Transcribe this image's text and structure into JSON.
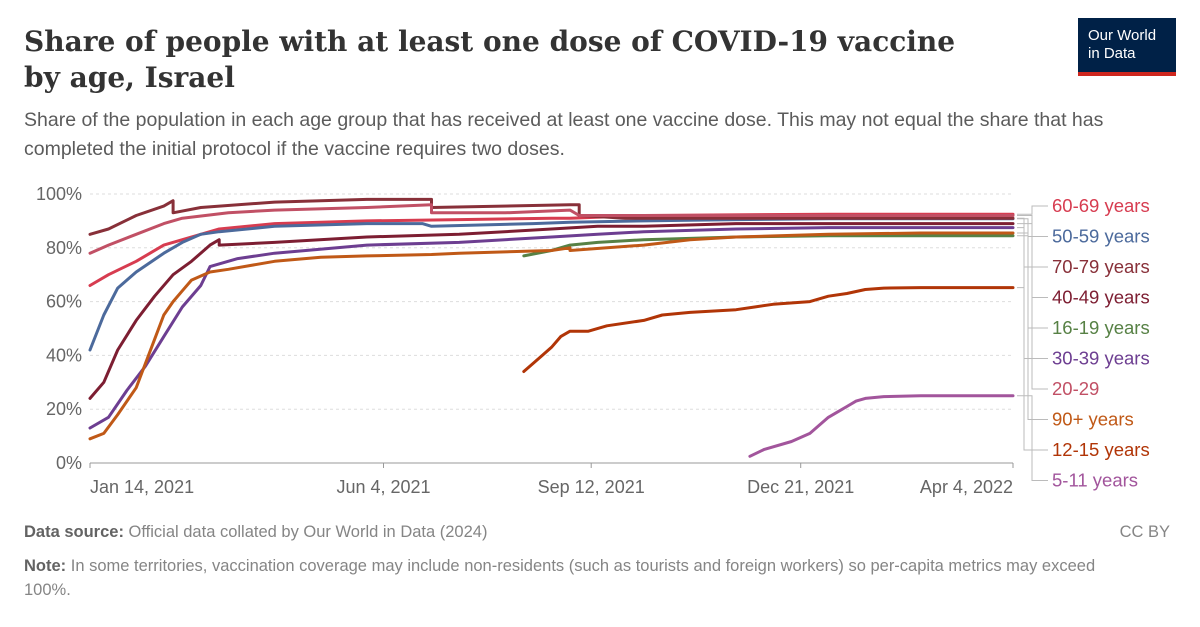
{
  "header": {
    "title": "Share of people with at least one dose of COVID-19 vaccine by age, Israel",
    "subtitle": "Share of the population in each age group that has received at least one vaccine dose. This may not equal the share that has completed the initial protocol if the vaccine requires two doses.",
    "logo_line1": "Our World",
    "logo_line2": "in Data"
  },
  "footer": {
    "source_label": "Data source:",
    "source_text": "Official data collated by Our World in Data (2024)",
    "license": "CC BY",
    "note_label": "Note:",
    "note_text": "In some territories, vaccination coverage may include non-residents (such as tourists and foreign workers) so per-capita metrics may exceed 100%."
  },
  "chart_data": {
    "type": "line",
    "title": "Share of people with at least one dose of COVID-19 vaccine by age, Israel",
    "xlabel": "",
    "ylabel": "",
    "x_domain": [
      0,
      1
    ],
    "ylim": [
      0,
      100
    ],
    "y_ticks": [
      {
        "value": 0,
        "label": "0%"
      },
      {
        "value": 20,
        "label": "20%"
      },
      {
        "value": 40,
        "label": "40%"
      },
      {
        "value": 60,
        "label": "60%"
      },
      {
        "value": 80,
        "label": "80%"
      },
      {
        "value": 100,
        "label": "100%"
      }
    ],
    "x_ticks": [
      {
        "value": 0.0,
        "label": "Jan 14, 2021"
      },
      {
        "value": 0.318,
        "label": "Jun 4, 2021"
      },
      {
        "value": 0.543,
        "label": "Sep 12, 2021"
      },
      {
        "value": 0.77,
        "label": "Dec 21, 2021"
      },
      {
        "value": 1.0,
        "label": "Apr 4, 2022"
      }
    ],
    "grid": true,
    "legend_placement": "right",
    "series": [
      {
        "name": "60-69 years",
        "color": "#d73c50",
        "points": [
          [
            0,
            66
          ],
          [
            0.02,
            70
          ],
          [
            0.05,
            75
          ],
          [
            0.08,
            81
          ],
          [
            0.12,
            85
          ],
          [
            0.14,
            87
          ],
          [
            0.2,
            89
          ],
          [
            0.3,
            90
          ],
          [
            0.4,
            90.5
          ],
          [
            0.5,
            91
          ],
          [
            0.52,
            91
          ],
          [
            0.6,
            92
          ],
          [
            0.8,
            92.5
          ],
          [
            1,
            92.5
          ]
        ]
      },
      {
        "name": "50-59 years",
        "color": "#4c6a9c",
        "points": [
          [
            0,
            42
          ],
          [
            0.015,
            55
          ],
          [
            0.03,
            65
          ],
          [
            0.05,
            71
          ],
          [
            0.08,
            78
          ],
          [
            0.1,
            82
          ],
          [
            0.12,
            85
          ],
          [
            0.14,
            86
          ],
          [
            0.2,
            88
          ],
          [
            0.3,
            89
          ],
          [
            0.36,
            89
          ],
          [
            0.37,
            88
          ],
          [
            0.48,
            89
          ],
          [
            0.52,
            89.5
          ],
          [
            0.6,
            90
          ],
          [
            0.7,
            90.5
          ],
          [
            0.8,
            90.8
          ],
          [
            1,
            90.8
          ]
        ]
      },
      {
        "name": "70-79 years",
        "color": "#883039",
        "points": [
          [
            0,
            85
          ],
          [
            0.02,
            87
          ],
          [
            0.05,
            92
          ],
          [
            0.08,
            95.5
          ],
          [
            0.09,
            97.5
          ],
          [
            0.09,
            93
          ],
          [
            0.12,
            95
          ],
          [
            0.2,
            97
          ],
          [
            0.3,
            98
          ],
          [
            0.37,
            98
          ],
          [
            0.37,
            95
          ],
          [
            0.52,
            96
          ],
          [
            0.53,
            96
          ],
          [
            0.53,
            92
          ],
          [
            0.58,
            91
          ],
          [
            0.6,
            91
          ],
          [
            0.7,
            91
          ],
          [
            0.8,
            91
          ],
          [
            1,
            91
          ]
        ]
      },
      {
        "name": "40-49 years",
        "color": "#7d1e32",
        "points": [
          [
            0,
            24
          ],
          [
            0.015,
            30
          ],
          [
            0.03,
            42
          ],
          [
            0.05,
            53
          ],
          [
            0.07,
            62
          ],
          [
            0.09,
            70
          ],
          [
            0.11,
            75
          ],
          [
            0.13,
            81
          ],
          [
            0.14,
            83
          ],
          [
            0.14,
            81
          ],
          [
            0.2,
            82
          ],
          [
            0.3,
            84
          ],
          [
            0.4,
            85
          ],
          [
            0.5,
            87
          ],
          [
            0.55,
            88
          ],
          [
            0.6,
            88
          ],
          [
            0.7,
            89
          ],
          [
            0.8,
            89
          ],
          [
            1,
            89
          ]
        ]
      },
      {
        "name": "16-19 years",
        "color": "#578145",
        "points": [
          [
            0.47,
            77
          ],
          [
            0.5,
            79
          ],
          [
            0.52,
            81
          ],
          [
            0.55,
            82
          ],
          [
            0.6,
            83
          ],
          [
            0.7,
            84
          ],
          [
            0.8,
            84.5
          ],
          [
            1,
            84.5
          ]
        ]
      },
      {
        "name": "30-39 years",
        "color": "#6d3e91",
        "points": [
          [
            0,
            13
          ],
          [
            0.02,
            17
          ],
          [
            0.04,
            27
          ],
          [
            0.06,
            36
          ],
          [
            0.08,
            47
          ],
          [
            0.1,
            58
          ],
          [
            0.12,
            66
          ],
          [
            0.13,
            73
          ],
          [
            0.16,
            76
          ],
          [
            0.2,
            78
          ],
          [
            0.3,
            81
          ],
          [
            0.4,
            82
          ],
          [
            0.5,
            84
          ],
          [
            0.55,
            85
          ],
          [
            0.6,
            86
          ],
          [
            0.7,
            87
          ],
          [
            0.8,
            87.5
          ],
          [
            1,
            87.5
          ]
        ]
      },
      {
        "name": "20-29",
        "color": "#c15065",
        "points": [
          [
            0,
            78
          ],
          [
            0.02,
            81
          ],
          [
            0.05,
            85
          ],
          [
            0.08,
            89
          ],
          [
            0.1,
            91
          ],
          [
            0.15,
            93
          ],
          [
            0.2,
            94
          ],
          [
            0.3,
            95
          ],
          [
            0.37,
            96
          ],
          [
            0.37,
            93
          ],
          [
            0.45,
            93
          ],
          [
            0.52,
            94
          ],
          [
            0.53,
            92
          ],
          [
            0.6,
            92
          ],
          [
            0.7,
            92
          ],
          [
            0.8,
            92
          ],
          [
            1,
            92
          ]
        ]
      },
      {
        "name": "90+ years",
        "color": "#c05917",
        "points": [
          [
            0,
            9
          ],
          [
            0.015,
            11
          ],
          [
            0.03,
            18
          ],
          [
            0.05,
            28
          ],
          [
            0.06,
            37
          ],
          [
            0.07,
            46
          ],
          [
            0.08,
            55
          ],
          [
            0.09,
            60
          ],
          [
            0.1,
            64
          ],
          [
            0.11,
            68
          ],
          [
            0.13,
            71
          ],
          [
            0.15,
            72
          ],
          [
            0.2,
            75
          ],
          [
            0.25,
            76.5
          ],
          [
            0.3,
            77
          ],
          [
            0.37,
            77.5
          ],
          [
            0.4,
            78
          ],
          [
            0.5,
            79
          ],
          [
            0.52,
            80
          ],
          [
            0.52,
            79
          ],
          [
            0.6,
            81
          ],
          [
            0.65,
            83
          ],
          [
            0.7,
            84
          ],
          [
            0.8,
            85
          ],
          [
            0.9,
            85.5
          ],
          [
            1,
            85.5
          ]
        ]
      },
      {
        "name": "12-15 years",
        "color": "#b13507",
        "points": [
          [
            0.47,
            34
          ],
          [
            0.48,
            37
          ],
          [
            0.49,
            40
          ],
          [
            0.5,
            43
          ],
          [
            0.51,
            47
          ],
          [
            0.52,
            49
          ],
          [
            0.54,
            49
          ],
          [
            0.56,
            51
          ],
          [
            0.6,
            53
          ],
          [
            0.62,
            55
          ],
          [
            0.65,
            56
          ],
          [
            0.7,
            57
          ],
          [
            0.72,
            58
          ],
          [
            0.74,
            59
          ],
          [
            0.78,
            60
          ],
          [
            0.8,
            62
          ],
          [
            0.82,
            63
          ],
          [
            0.84,
            64.5
          ],
          [
            0.86,
            65
          ],
          [
            0.9,
            65.2
          ],
          [
            1,
            65.2
          ]
        ]
      },
      {
        "name": "5-11 years",
        "color": "#a2559c",
        "points": [
          [
            0.715,
            2.5
          ],
          [
            0.73,
            5
          ],
          [
            0.76,
            8
          ],
          [
            0.78,
            11
          ],
          [
            0.79,
            14
          ],
          [
            0.8,
            17
          ],
          [
            0.81,
            19
          ],
          [
            0.82,
            21
          ],
          [
            0.83,
            23
          ],
          [
            0.84,
            24
          ],
          [
            0.86,
            24.7
          ],
          [
            0.9,
            25
          ],
          [
            1,
            25
          ]
        ]
      }
    ]
  }
}
